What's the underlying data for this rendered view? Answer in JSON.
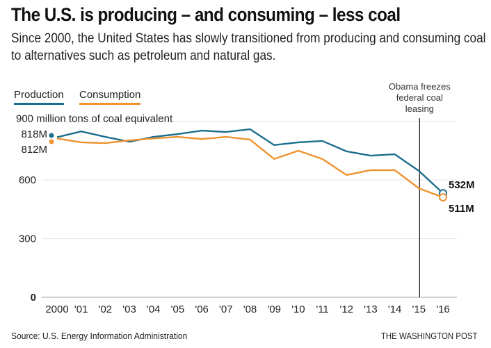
{
  "header": {
    "title": "The U.S. is producing – and consuming – less coal",
    "subtitle": "Since 2000, the United States has slowly transitioned from producing and consuming coal to alternatives such as petroleum and natural gas."
  },
  "footer": {
    "source": "Source: U.S. Energy Information Administration",
    "brand": "THE WASHINGTON POST"
  },
  "colors": {
    "production": "#1b6e8d",
    "consumption": "#f0922f",
    "grid": "#d6d6d6",
    "annotation_line": "#111111"
  },
  "chart_data": {
    "type": "line",
    "title": "The U.S. is producing – and consuming – less coal",
    "xlabel": "",
    "ylabel": "million tons of coal equivalent",
    "y_unit_label": "900 million tons of coal equivalent",
    "ylim": [
      0,
      900
    ],
    "y_ticks": [
      0,
      300,
      600,
      900
    ],
    "y_tick_labels": [
      "0",
      "300",
      "600",
      ""
    ],
    "grid": true,
    "legend_position": "top-left",
    "x": [
      2000,
      2001,
      2002,
      2003,
      2004,
      2005,
      2006,
      2007,
      2008,
      2009,
      2010,
      2011,
      2012,
      2013,
      2014,
      2015,
      2016
    ],
    "x_tick_labels": [
      "2000",
      "'01",
      "'02",
      "'03",
      "'04",
      "'05",
      "'06",
      "'07",
      "'08",
      "'09",
      "'10",
      "'11",
      "'12",
      "'13",
      "'14",
      "'15",
      "'16"
    ],
    "series": [
      {
        "name": "Production",
        "key": "production",
        "values": [
          818,
          848,
          820,
          795,
          820,
          834,
          852,
          845,
          859,
          778,
          792,
          799,
          746,
          724,
          731,
          646,
          532
        ],
        "start_label": "818M",
        "end_label": "532M"
      },
      {
        "name": "Consumption",
        "key": "consumption",
        "values": [
          812,
          792,
          788,
          802,
          812,
          820,
          809,
          820,
          806,
          707,
          749,
          707,
          625,
          650,
          650,
          557,
          511
        ],
        "start_label": "812M",
        "end_label": "511M"
      }
    ],
    "annotations": [
      {
        "x": 2015,
        "lines": [
          "Obama freezes",
          "federal coal",
          "leasing"
        ]
      }
    ]
  }
}
